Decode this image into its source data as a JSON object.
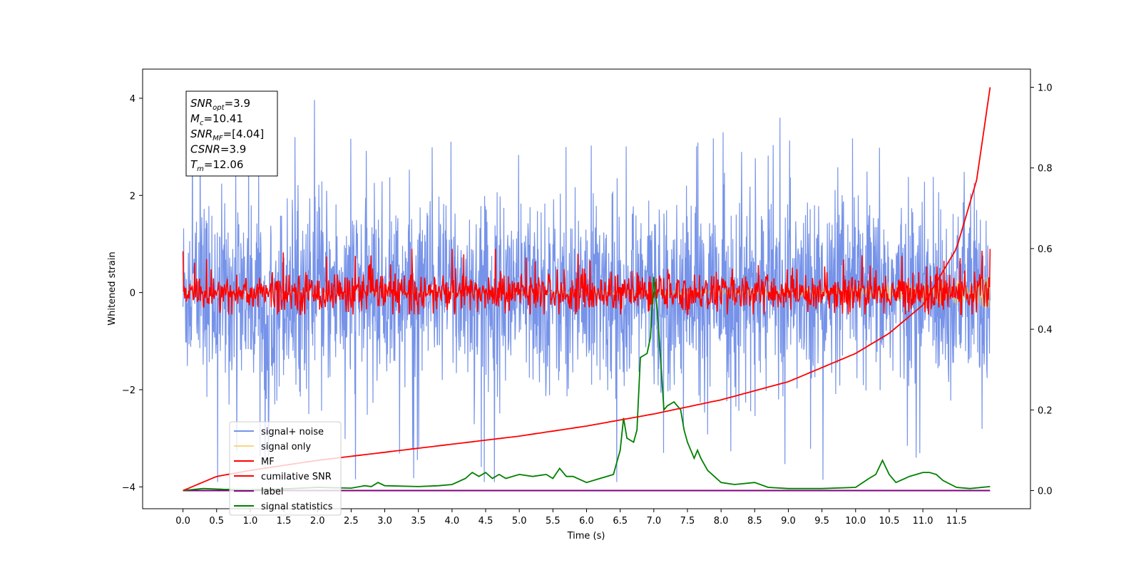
{
  "chart_data": {
    "type": "line",
    "xlabel": "Time (s)",
    "ylabel": "Whitened strain",
    "xlim": [
      -0.6,
      12.6
    ],
    "ylim": [
      -4.45,
      4.6
    ],
    "y2lim": [
      -0.045,
      1.045
    ],
    "x_ticks": [
      0.0,
      0.5,
      1.0,
      1.5,
      2.0,
      2.5,
      3.0,
      3.5,
      4.0,
      4.5,
      5.0,
      5.5,
      6.0,
      6.5,
      7.0,
      7.5,
      8.0,
      8.5,
      9.0,
      9.5,
      10.0,
      10.5,
      11.0,
      11.5
    ],
    "x_tick_labels": [
      "0.0",
      "0.5",
      "1.0",
      "1.5",
      "2.0",
      "2.5",
      "3.0",
      "3.5",
      "4.0",
      "4.5",
      "5.0",
      "5.5",
      "6.0",
      "6.5",
      "7.0",
      "7.5",
      "8.0",
      "8.5",
      "9.0",
      "9.5",
      "10.0",
      "10.5",
      "11.0",
      "11.5"
    ],
    "y_ticks": [
      -4,
      -2,
      0,
      2,
      4
    ],
    "y_tick_labels": [
      "−4",
      "−2",
      "0",
      "2",
      "4"
    ],
    "y2_ticks": [
      0.0,
      0.2,
      0.4,
      0.6,
      0.8,
      1.0
    ],
    "y2_tick_labels": [
      "0.0",
      "0.2",
      "0.4",
      "0.6",
      "0.8",
      "1.0"
    ],
    "grid": false,
    "legend_placement": "lower-left",
    "series": [
      {
        "name": "signal+ noise",
        "color": "#6f8de8",
        "axis": "left",
        "description_values": "noise band approx amplitude ±2.5, spikes to ±4"
      },
      {
        "name": "signal only",
        "color": "#f5c64e",
        "axis": "left"
      },
      {
        "name": "MF",
        "color": "#ff0000",
        "axis": "left"
      },
      {
        "name": "cumilative SNR",
        "color": "#ff0000",
        "axis": "right",
        "x": [
          0.0,
          0.5,
          1.0,
          2.0,
          3.0,
          4.0,
          5.0,
          6.0,
          7.0,
          8.0,
          9.0,
          10.0,
          10.5,
          11.0,
          11.5,
          11.8,
          12.0
        ],
        "values": [
          0.0,
          0.035,
          0.05,
          0.075,
          0.095,
          0.115,
          0.135,
          0.16,
          0.19,
          0.225,
          0.27,
          0.34,
          0.39,
          0.46,
          0.6,
          0.77,
          1.0
        ]
      },
      {
        "name": "label",
        "color": "#800080",
        "axis": "right",
        "x": [
          0.0,
          12.0
        ],
        "values": [
          0.0,
          0.0
        ]
      },
      {
        "name": "signal statistics",
        "color": "#008000",
        "axis": "right",
        "x": [
          0.0,
          0.3,
          0.6,
          1.0,
          1.5,
          2.0,
          2.5,
          2.7,
          2.8,
          2.9,
          3.0,
          3.5,
          3.8,
          4.0,
          4.2,
          4.3,
          4.4,
          4.5,
          4.6,
          4.7,
          4.8,
          5.0,
          5.2,
          5.4,
          5.5,
          5.6,
          5.7,
          5.8,
          6.0,
          6.2,
          6.3,
          6.4,
          6.5,
          6.55,
          6.6,
          6.7,
          6.75,
          6.8,
          6.9,
          6.95,
          7.0,
          7.05,
          7.1,
          7.15,
          7.2,
          7.3,
          7.4,
          7.45,
          7.5,
          7.6,
          7.65,
          7.7,
          7.8,
          8.0,
          8.2,
          8.5,
          8.7,
          9.0,
          9.5,
          10.0,
          10.2,
          10.3,
          10.4,
          10.5,
          10.6,
          10.8,
          11.0,
          11.1,
          11.2,
          11.3,
          11.5,
          11.7,
          12.0
        ],
        "values": [
          0.0,
          0.005,
          0.003,
          0.002,
          0.004,
          0.008,
          0.006,
          0.012,
          0.01,
          0.02,
          0.012,
          0.01,
          0.012,
          0.015,
          0.03,
          0.045,
          0.035,
          0.045,
          0.03,
          0.04,
          0.03,
          0.04,
          0.035,
          0.04,
          0.03,
          0.055,
          0.035,
          0.035,
          0.02,
          0.03,
          0.035,
          0.04,
          0.1,
          0.18,
          0.13,
          0.12,
          0.15,
          0.33,
          0.34,
          0.38,
          0.53,
          0.45,
          0.33,
          0.2,
          0.21,
          0.22,
          0.2,
          0.15,
          0.12,
          0.08,
          0.1,
          0.08,
          0.05,
          0.02,
          0.015,
          0.02,
          0.008,
          0.005,
          0.005,
          0.008,
          0.03,
          0.04,
          0.075,
          0.04,
          0.02,
          0.035,
          0.045,
          0.045,
          0.04,
          0.025,
          0.008,
          0.005,
          0.01
        ]
      }
    ],
    "annotations": [
      {
        "label": "SNR",
        "sub": "opt",
        "value": "=3.9"
      },
      {
        "label": "M",
        "sub": "c",
        "value": "=10.41"
      },
      {
        "label": "SNR",
        "sub": "MF",
        "value": "=[4.04]"
      },
      {
        "label": "CSNR",
        "sub": "",
        "value": "=3.9"
      },
      {
        "label": "T",
        "sub": "m",
        "value": "=12.06"
      }
    ]
  }
}
